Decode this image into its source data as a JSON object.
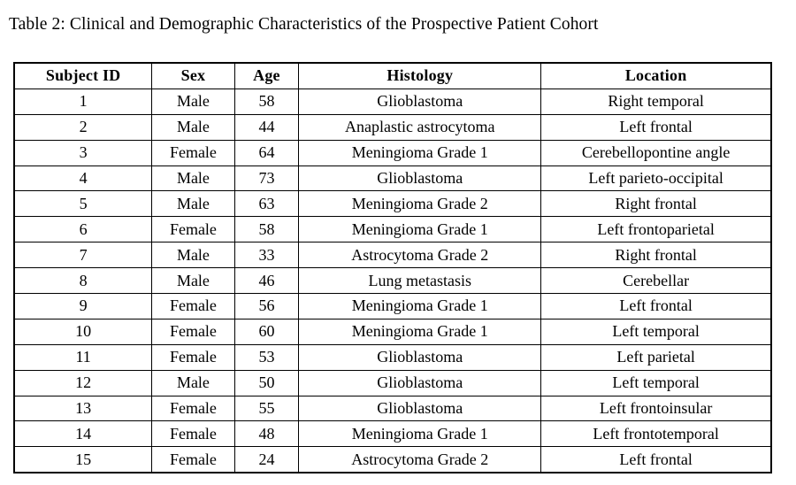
{
  "page": {
    "background_color": "#ffffff",
    "text_color": "#000000"
  },
  "caption": "Table 2: Clinical and Demographic Characteristics of the Prospective Patient Cohort",
  "table": {
    "headers": [
      "Subject ID",
      "Sex",
      "Age",
      "Histology",
      "Location"
    ],
    "rows": [
      [
        "1",
        "Male",
        "58",
        "Glioblastoma",
        "Right temporal"
      ],
      [
        "2",
        "Male",
        "44",
        "Anaplastic astrocytoma",
        "Left frontal"
      ],
      [
        "3",
        "Female",
        "64",
        "Meningioma Grade 1",
        "Cerebellopontine angle"
      ],
      [
        "4",
        "Male",
        "73",
        "Glioblastoma",
        "Left parieto-occipital"
      ],
      [
        "5",
        "Male",
        "63",
        "Meningioma Grade 2",
        "Right frontal"
      ],
      [
        "6",
        "Female",
        "58",
        "Meningioma Grade 1",
        "Left frontoparietal"
      ],
      [
        "7",
        "Male",
        "33",
        "Astrocytoma Grade 2",
        "Right frontal"
      ],
      [
        "8",
        "Male",
        "46",
        "Lung metastasis",
        "Cerebellar"
      ],
      [
        "9",
        "Female",
        "56",
        "Meningioma Grade 1",
        "Left frontal"
      ],
      [
        "10",
        "Female",
        "60",
        "Meningioma Grade 1",
        "Left temporal"
      ],
      [
        "11",
        "Female",
        "53",
        "Glioblastoma",
        "Left parietal"
      ],
      [
        "12",
        "Male",
        "50",
        "Glioblastoma",
        "Left temporal"
      ],
      [
        "13",
        "Female",
        "55",
        "Glioblastoma",
        "Left frontoinsular"
      ],
      [
        "14",
        "Female",
        "48",
        "Meningioma Grade 1",
        "Left frontotemporal"
      ],
      [
        "15",
        "Female",
        "24",
        "Astrocytoma Grade 2",
        "Left frontal"
      ]
    ]
  }
}
